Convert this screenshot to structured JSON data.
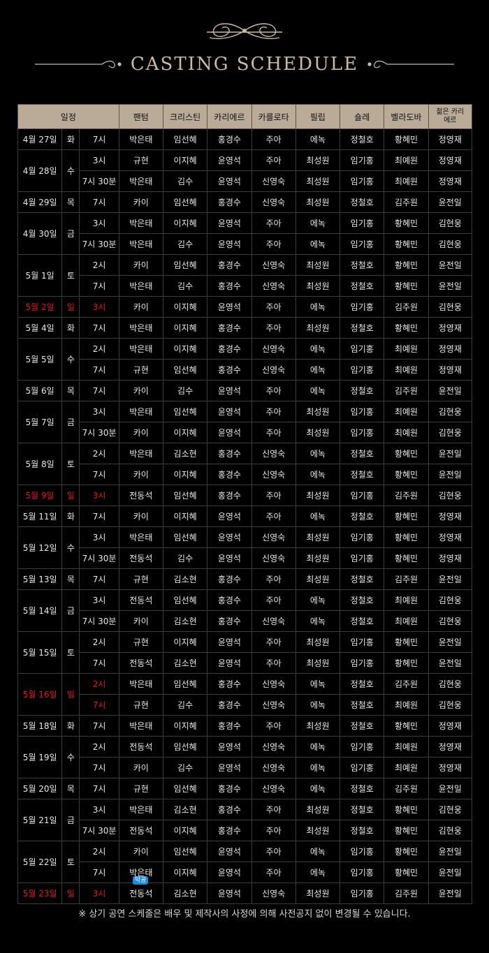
{
  "title": "CASTING SCHEDULE",
  "colors": {
    "background": "#000000",
    "header_bg": "#b9ab98",
    "title": "#cdbba0",
    "sunday": "#e5141b",
    "badge": "#1b8ce0"
  },
  "table": {
    "headers": [
      "일정",
      "팬텀",
      "크리스틴",
      "카리에르",
      "카를로타",
      "필립",
      "숄레",
      "벨라도바",
      "젊은 카리에르"
    ],
    "groups": [
      {
        "date": "4월 27일",
        "day": "화",
        "sunday": false,
        "shows": [
          {
            "time": "7시",
            "cast": [
              "박은태",
              "임선혜",
              "홍경수",
              "주아",
              "에녹",
              "정철호",
              "황혜민",
              "정영재"
            ]
          }
        ]
      },
      {
        "date": "4월 28일",
        "day": "수",
        "sunday": false,
        "shows": [
          {
            "time": "3시",
            "cast": [
              "규현",
              "이지혜",
              "윤영석",
              "주아",
              "최성원",
              "임기홍",
              "최예원",
              "정영재"
            ]
          },
          {
            "time": "7시 30분",
            "cast": [
              "박은태",
              "김수",
              "윤영석",
              "신영숙",
              "최성원",
              "임기홍",
              "최예원",
              "정영재"
            ]
          }
        ]
      },
      {
        "date": "4월 29일",
        "day": "목",
        "sunday": false,
        "shows": [
          {
            "time": "7시",
            "cast": [
              "카이",
              "임선혜",
              "홍경수",
              "신영숙",
              "최성원",
              "정철호",
              "김주원",
              "윤전일"
            ]
          }
        ]
      },
      {
        "date": "4월 30일",
        "day": "금",
        "sunday": false,
        "shows": [
          {
            "time": "3시",
            "cast": [
              "박은태",
              "이지혜",
              "윤영석",
              "주아",
              "에녹",
              "임기홍",
              "황혜민",
              "김현웅"
            ]
          },
          {
            "time": "7시 30분",
            "cast": [
              "박은태",
              "김수",
              "윤영석",
              "주아",
              "에녹",
              "임기홍",
              "황혜민",
              "김현웅"
            ]
          }
        ]
      },
      {
        "date": "5월 1일",
        "day": "토",
        "sunday": false,
        "shows": [
          {
            "time": "2시",
            "cast": [
              "카이",
              "임선혜",
              "홍경수",
              "신영숙",
              "최성원",
              "정철호",
              "황혜민",
              "윤전일"
            ]
          },
          {
            "time": "7시",
            "cast": [
              "박은태",
              "김수",
              "홍경수",
              "신영숙",
              "최성원",
              "정철호",
              "황혜민",
              "윤전일"
            ]
          }
        ]
      },
      {
        "date": "5월 2일",
        "day": "일",
        "sunday": true,
        "shows": [
          {
            "time": "3시",
            "cast": [
              "카이",
              "이지혜",
              "윤영석",
              "주아",
              "에녹",
              "임기홍",
              "김주원",
              "김현웅"
            ]
          }
        ]
      },
      {
        "date": "5월 4일",
        "day": "화",
        "sunday": false,
        "shows": [
          {
            "time": "7시",
            "cast": [
              "박은태",
              "이지혜",
              "홍경수",
              "주아",
              "최성원",
              "정철호",
              "황혜민",
              "정영재"
            ]
          }
        ]
      },
      {
        "date": "5월 5일",
        "day": "수",
        "sunday": false,
        "shows": [
          {
            "time": "2시",
            "cast": [
              "박은태",
              "이지혜",
              "홍경수",
              "신영숙",
              "에녹",
              "임기홍",
              "최예원",
              "정영재"
            ]
          },
          {
            "time": "7시",
            "cast": [
              "규현",
              "임선혜",
              "홍경수",
              "신영숙",
              "에녹",
              "임기홍",
              "최예원",
              "정영재"
            ]
          }
        ]
      },
      {
        "date": "5월 6일",
        "day": "목",
        "sunday": false,
        "shows": [
          {
            "time": "7시",
            "cast": [
              "카이",
              "김수",
              "윤영석",
              "주아",
              "에녹",
              "정철호",
              "김주원",
              "윤전일"
            ]
          }
        ]
      },
      {
        "date": "5월 7일",
        "day": "금",
        "sunday": false,
        "shows": [
          {
            "time": "3시",
            "cast": [
              "박은태",
              "임선혜",
              "윤영석",
              "주아",
              "최성원",
              "임기홍",
              "최예원",
              "김현웅"
            ]
          },
          {
            "time": "7시 30분",
            "cast": [
              "카이",
              "이지혜",
              "윤영석",
              "주아",
              "최성원",
              "임기홍",
              "최예원",
              "김현웅"
            ]
          }
        ]
      },
      {
        "date": "5월 8일",
        "day": "토",
        "sunday": false,
        "shows": [
          {
            "time": "2시",
            "cast": [
              "박은태",
              "김소현",
              "홍경수",
              "신영숙",
              "에녹",
              "정철호",
              "황혜민",
              "윤전일"
            ]
          },
          {
            "time": "7시",
            "cast": [
              "카이",
              "이지혜",
              "홍경수",
              "신영숙",
              "에녹",
              "정철호",
              "황혜민",
              "윤전일"
            ]
          }
        ]
      },
      {
        "date": "5월 9일",
        "day": "일",
        "sunday": true,
        "shows": [
          {
            "time": "3시",
            "cast": [
              "전동석",
              "임선혜",
              "홍경수",
              "주아",
              "최성원",
              "임기홍",
              "김주원",
              "김현웅"
            ]
          }
        ]
      },
      {
        "date": "5월 11일",
        "day": "화",
        "sunday": false,
        "shows": [
          {
            "time": "7시",
            "cast": [
              "카이",
              "이지혜",
              "윤영석",
              "주아",
              "에녹",
              "정철호",
              "황혜민",
              "정영재"
            ]
          }
        ]
      },
      {
        "date": "5월 12일",
        "day": "수",
        "sunday": false,
        "shows": [
          {
            "time": "3시",
            "cast": [
              "박은태",
              "임선혜",
              "윤영석",
              "신영숙",
              "최성원",
              "임기홍",
              "황혜민",
              "정영재"
            ]
          },
          {
            "time": "7시 30분",
            "cast": [
              "전동석",
              "김수",
              "윤영석",
              "신영숙",
              "최성원",
              "임기홍",
              "황혜민",
              "정영재"
            ]
          }
        ]
      },
      {
        "date": "5월 13일",
        "day": "목",
        "sunday": false,
        "shows": [
          {
            "time": "7시",
            "cast": [
              "규현",
              "김소현",
              "홍경수",
              "주아",
              "최성원",
              "정철호",
              "김주원",
              "윤전일"
            ]
          }
        ]
      },
      {
        "date": "5월 14일",
        "day": "금",
        "sunday": false,
        "shows": [
          {
            "time": "3시",
            "cast": [
              "전동석",
              "임선혜",
              "홍경수",
              "주아",
              "에녹",
              "정철호",
              "최예원",
              "김현웅"
            ]
          },
          {
            "time": "7시 30분",
            "cast": [
              "카이",
              "김소현",
              "홍경수",
              "신영숙",
              "에녹",
              "정철호",
              "최예원",
              "김현웅"
            ]
          }
        ]
      },
      {
        "date": "5월 15일",
        "day": "토",
        "sunday": false,
        "shows": [
          {
            "time": "2시",
            "cast": [
              "규현",
              "이지혜",
              "윤영석",
              "주아",
              "최성원",
              "임기홍",
              "황혜민",
              "윤전일"
            ]
          },
          {
            "time": "7시",
            "cast": [
              "전동석",
              "김소현",
              "윤영석",
              "주아",
              "최성원",
              "임기홍",
              "황혜민",
              "윤전일"
            ]
          }
        ]
      },
      {
        "date": "5월 16일",
        "day": "일",
        "sunday": true,
        "shows": [
          {
            "time": "2시",
            "cast": [
              "박은태",
              "임선혜",
              "홍경수",
              "신영숙",
              "에녹",
              "정철호",
              "김주원",
              "김현웅"
            ]
          },
          {
            "time": "7시",
            "cast": [
              "규현",
              "김수",
              "홍경수",
              "신영숙",
              "에녹",
              "정철호",
              "최예원",
              "김현웅"
            ]
          }
        ]
      },
      {
        "date": "5월 18일",
        "day": "화",
        "sunday": false,
        "shows": [
          {
            "time": "7시",
            "cast": [
              "박은태",
              "이지혜",
              "홍경수",
              "주아",
              "최성원",
              "정철호",
              "황혜민",
              "정영재"
            ]
          }
        ]
      },
      {
        "date": "5월 19일",
        "day": "수",
        "sunday": false,
        "shows": [
          {
            "time": "2시",
            "cast": [
              "전동석",
              "임선혜",
              "윤영석",
              "신영숙",
              "에녹",
              "임기홍",
              "최예원",
              "정영재"
            ]
          },
          {
            "time": "7시",
            "cast": [
              "카이",
              "김수",
              "윤영석",
              "신영숙",
              "에녹",
              "임기홍",
              "최예원",
              "정영재"
            ]
          }
        ]
      },
      {
        "date": "5월 20일",
        "day": "목",
        "sunday": false,
        "shows": [
          {
            "time": "7시",
            "cast": [
              "규현",
              "임선혜",
              "홍경수",
              "신영숙",
              "에녹",
              "정철호",
              "김주원",
              "윤전일"
            ]
          }
        ]
      },
      {
        "date": "5월 21일",
        "day": "금",
        "sunday": false,
        "shows": [
          {
            "time": "3시",
            "cast": [
              "박은태",
              "김소현",
              "홍경수",
              "주아",
              "최성원",
              "정철호",
              "황혜민",
              "김현웅"
            ]
          },
          {
            "time": "7시 30분",
            "cast": [
              "전동석",
              "이지혜",
              "홍경수",
              "주아",
              "최성원",
              "정철호",
              "황혜민",
              "김현웅"
            ]
          }
        ]
      },
      {
        "date": "5월 22일",
        "day": "토",
        "sunday": false,
        "shows": [
          {
            "time": "2시",
            "cast": [
              "카이",
              "임선혜",
              "윤영석",
              "주아",
              "에녹",
              "임기홍",
              "황혜민",
              "윤전일"
            ]
          },
          {
            "time": "7시",
            "cast": [
              "박은태",
              "이지혜",
              "윤영석",
              "주아",
              "에녹",
              "임기홍",
              "황혜민",
              "윤전일"
            ]
          }
        ]
      },
      {
        "date": "5월 23일",
        "day": "일",
        "sunday": true,
        "shows": [
          {
            "time": "3시",
            "cast": [
              "전동석",
              "김소현",
              "윤영석",
              "신영숙",
              "최성원",
              "임기홍",
              "김주원",
              "윤전일"
            ]
          }
        ]
      }
    ],
    "final_badge": "막공"
  },
  "footnote": "※ 상기 공연 스케줄은 배우 및 제작사의 사정에 의해 사전공지 없이 변경될 수 있습니다."
}
